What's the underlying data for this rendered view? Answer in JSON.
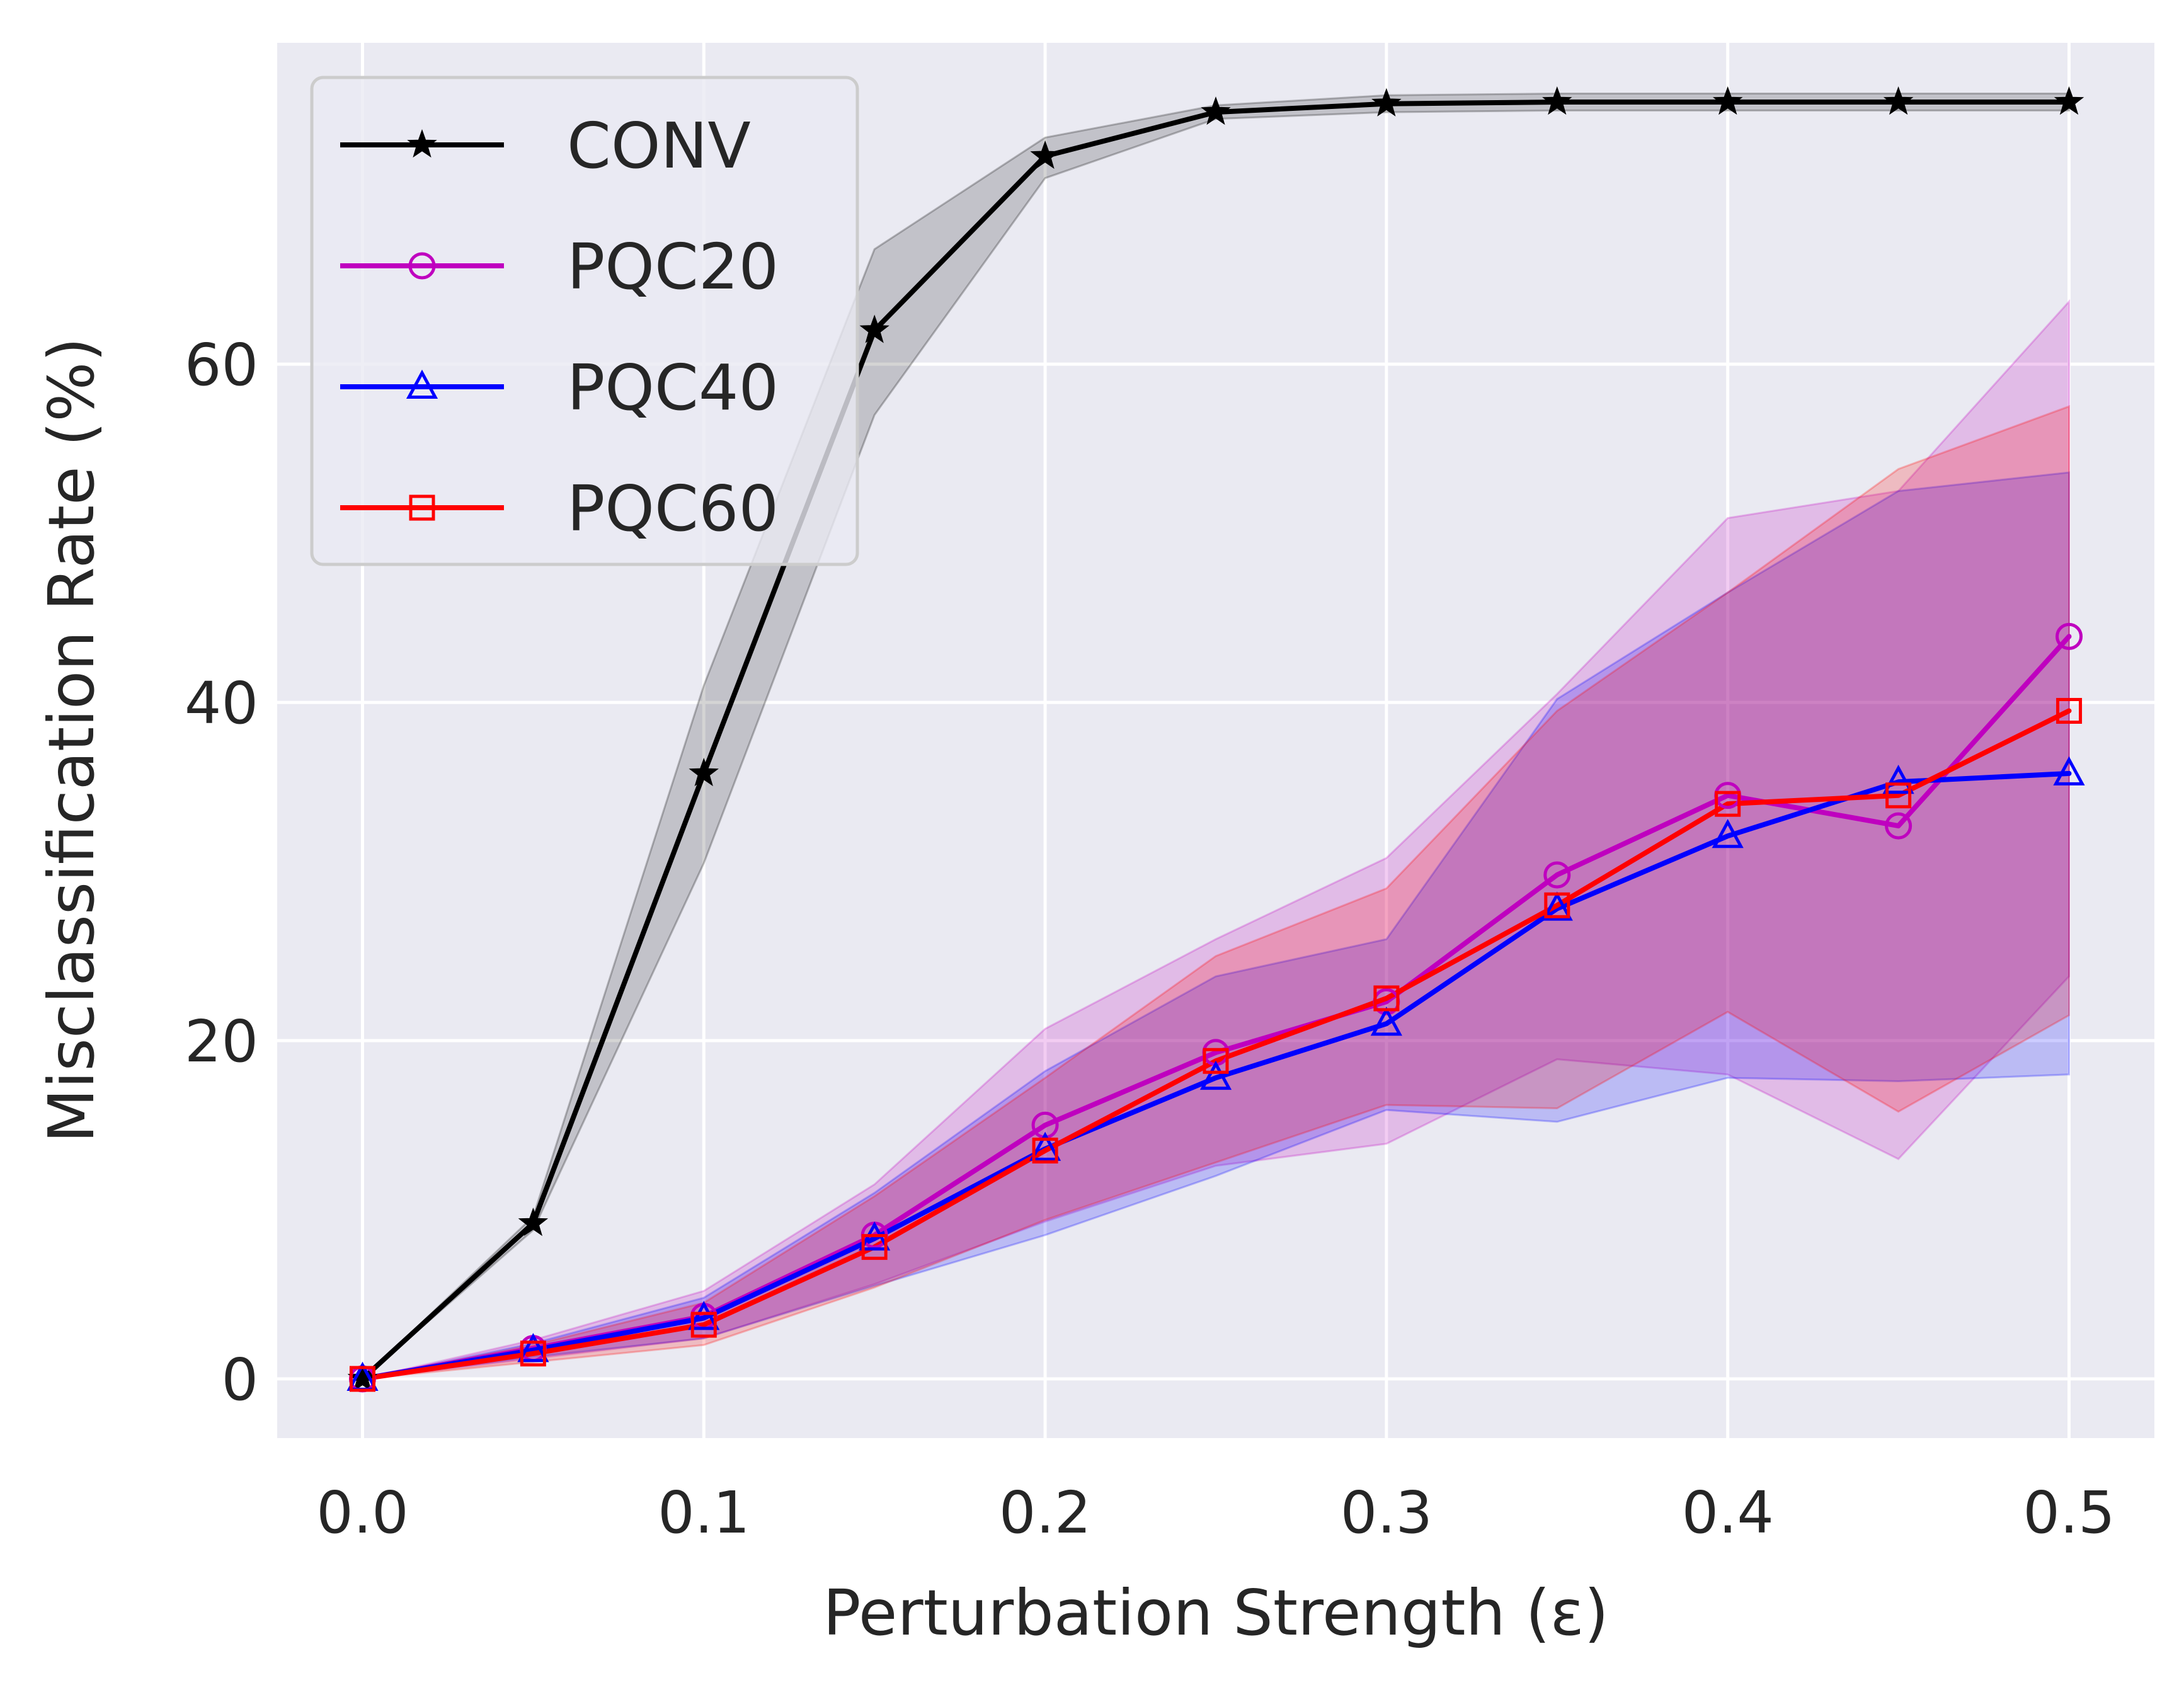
{
  "colors": {
    "background": "#eaeaf2",
    "grid": "#ffffff",
    "text": "#262626"
  },
  "chart_data": {
    "type": "line",
    "title": "",
    "xlabel": "Perturbation Strength (ε)",
    "ylabel": "Misclassification Rate (%)",
    "xlim": [
      -0.025,
      0.525
    ],
    "ylim": [
      -3.5,
      79
    ],
    "xticks": [
      0.0,
      0.1,
      0.2,
      0.3,
      0.4,
      0.5
    ],
    "xtick_labels": [
      "0.0",
      "0.1",
      "0.2",
      "0.3",
      "0.4",
      "0.5"
    ],
    "yticks": [
      0,
      20,
      40,
      60
    ],
    "ytick_labels": [
      "0",
      "20",
      "40",
      "60"
    ],
    "grid": true,
    "legend_position": "top-left",
    "x": [
      0.0,
      0.05,
      0.1,
      0.15,
      0.2,
      0.25,
      0.3,
      0.35,
      0.4,
      0.45,
      0.5
    ],
    "series": [
      {
        "name": "CONV",
        "color": "#000000",
        "marker": "star",
        "values": [
          0,
          9.2,
          35.8,
          62.0,
          72.3,
          74.9,
          75.4,
          75.5,
          75.5,
          75.5,
          75.5
        ],
        "band_upper": [
          0,
          9.6,
          41.0,
          66.8,
          73.4,
          75.3,
          75.9,
          76.0,
          76.0,
          76.0,
          76.0
        ],
        "band_lower": [
          0,
          8.8,
          30.5,
          57.0,
          71.0,
          74.5,
          74.9,
          75.0,
          75.0,
          75.0,
          75.0
        ]
      },
      {
        "name": "PQC20",
        "color": "#bf00bf",
        "marker": "circle",
        "values": [
          0,
          1.8,
          3.7,
          8.5,
          15.0,
          19.3,
          22.3,
          29.8,
          34.5,
          32.7,
          43.9
        ],
        "band_upper": [
          0,
          2.3,
          5.2,
          11.5,
          20.7,
          26.0,
          30.8,
          40.5,
          50.9,
          52.5,
          63.7
        ],
        "band_lower": [
          0,
          1.2,
          2.4,
          5.6,
          9.3,
          12.6,
          13.9,
          18.9,
          18.0,
          13.0,
          23.8
        ]
      },
      {
        "name": "PQC40",
        "color": "#0000ff",
        "marker": "triangle",
        "values": [
          0,
          1.7,
          3.6,
          8.3,
          13.6,
          17.8,
          21.0,
          27.8,
          32.1,
          35.3,
          35.8
        ],
        "band_upper": [
          0,
          2.1,
          4.8,
          11.0,
          18.2,
          23.8,
          26.0,
          40.2,
          46.5,
          52.5,
          53.6
        ],
        "band_lower": [
          0,
          1.3,
          2.4,
          5.5,
          8.5,
          12.0,
          15.9,
          15.2,
          17.8,
          17.6,
          18.0
        ]
      },
      {
        "name": "PQC60",
        "color": "#ff0000",
        "marker": "square",
        "values": [
          0,
          1.5,
          3.2,
          7.8,
          13.5,
          18.8,
          22.5,
          28.0,
          34.0,
          34.5,
          39.5
        ],
        "band_upper": [
          0,
          2.0,
          4.5,
          10.8,
          17.8,
          25.0,
          29.0,
          39.5,
          46.5,
          53.8,
          57.5
        ],
        "band_lower": [
          0,
          1.0,
          2.0,
          5.4,
          9.4,
          12.8,
          16.2,
          16.0,
          21.7,
          15.8,
          21.5
        ]
      }
    ]
  }
}
